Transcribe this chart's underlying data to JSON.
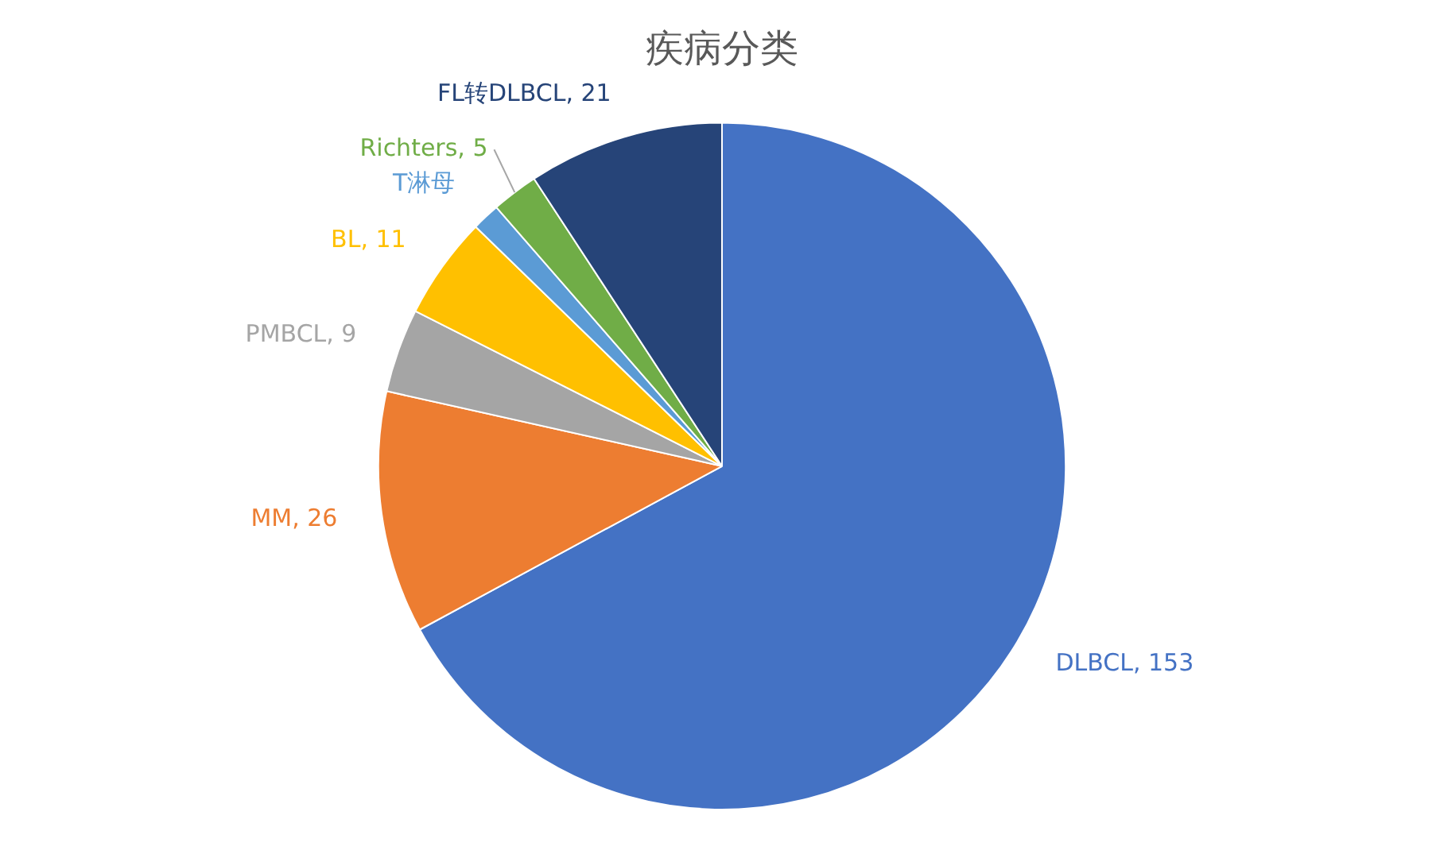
{
  "chart_data": {
    "type": "pie",
    "title": "疾病分类",
    "categories": [
      "DLBCL",
      "MM",
      "PMBCL",
      "BL",
      "T淋母",
      "Richters",
      "FL转DLBCL"
    ],
    "values": [
      153,
      26,
      9,
      11,
      3,
      5,
      21
    ],
    "colors": [
      "#4472c4",
      "#ed7d31",
      "#a5a5a5",
      "#ffc000",
      "#5b9bd5",
      "#70ad47",
      "#264478"
    ],
    "value_labels": [
      "153",
      "26",
      "9",
      "11",
      null,
      "5",
      "21"
    ],
    "legend": false
  }
}
